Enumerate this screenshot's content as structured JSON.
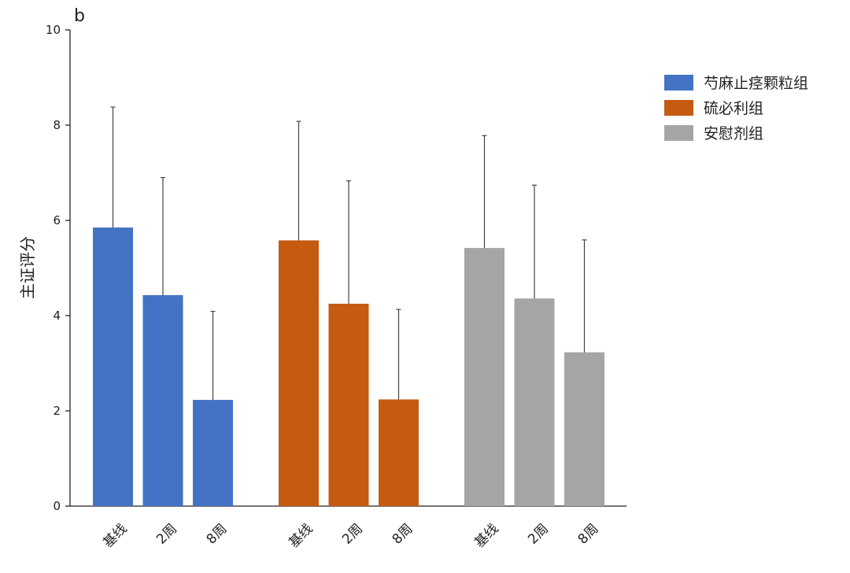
{
  "panel_label": "b",
  "chart_data": {
    "type": "bar",
    "title": "",
    "xlabel": "",
    "ylabel": "主证评分",
    "ylim": [
      0,
      10
    ],
    "yticks": [
      0,
      2,
      4,
      6,
      8,
      10
    ],
    "grid": false,
    "legend_position": "right",
    "groups": [
      {
        "name": "芍麻止痉颗粒组",
        "color": "#4472C4",
        "categories": [
          "基线",
          "2周",
          "8周"
        ],
        "values": [
          5.85,
          4.43,
          2.23
        ],
        "errors": [
          2.53,
          2.47,
          1.86
        ]
      },
      {
        "name": "硫必利组",
        "color": "#C55A11",
        "categories": [
          "基线",
          "2周",
          "8周"
        ],
        "values": [
          5.58,
          4.25,
          2.24
        ],
        "errors": [
          2.5,
          2.58,
          1.89
        ]
      },
      {
        "name": "安慰剂组",
        "color": "#A5A5A5",
        "categories": [
          "基线",
          "2周",
          "8周"
        ],
        "values": [
          5.42,
          4.36,
          3.23
        ],
        "errors": [
          2.36,
          2.38,
          2.36
        ]
      }
    ]
  }
}
